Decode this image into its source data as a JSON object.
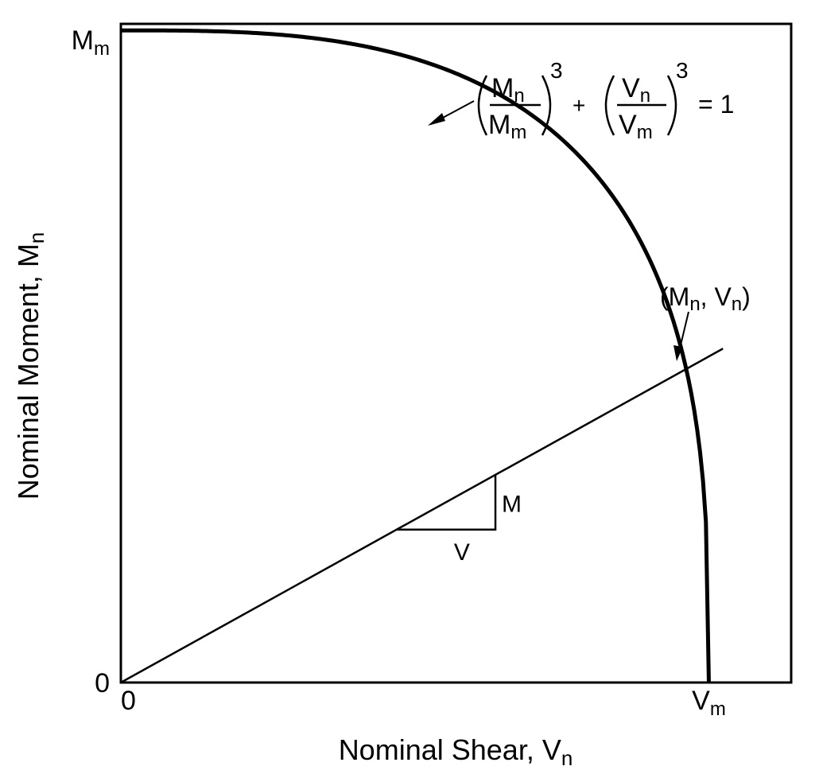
{
  "chart_data": {
    "type": "line",
    "xlabel": {
      "text": "Nominal Shear, V",
      "sub": "n"
    },
    "ylabel": {
      "text": "Nominal Moment, M",
      "sub": "n"
    },
    "xlim": [
      0,
      1.14
    ],
    "ylim": [
      0,
      1.01
    ],
    "x_ticks": [
      {
        "value": 0,
        "text": "0",
        "sub": ""
      },
      {
        "value": 1,
        "text": "V",
        "sub": "m"
      }
    ],
    "y_ticks": [
      {
        "value": 0,
        "text": "0",
        "sub": ""
      },
      {
        "value": 1,
        "text": "M",
        "sub": "m"
      }
    ],
    "series": [
      {
        "kind": "interaction-curve",
        "equation": "(Mn/Mm)^3 + (Vn/Vm)^3 = 1",
        "exponent": 3
      },
      {
        "kind": "load-line",
        "slope_M_per_V": 0.5,
        "x_end": 1.024
      }
    ],
    "intersection_label": "(Mn, Vn)",
    "slope_triangle": {
      "x_start": 0.469,
      "x_end": 0.637,
      "rise_label": "M",
      "run_label": "V"
    },
    "equation_text": {
      "n1": "M",
      "n1sub": "n",
      "d1": "M",
      "d1sub": "m",
      "exp1": "3",
      "plus": "+",
      "n2": "V",
      "n2sub": "n",
      "d2": "V",
      "d2sub": "m",
      "exp2": "3",
      "rhs": "= 1"
    },
    "point_label": {
      "open": "(M",
      "sub1": "n",
      "mid": ", V",
      "sub2": "n",
      "close": ")"
    }
  }
}
